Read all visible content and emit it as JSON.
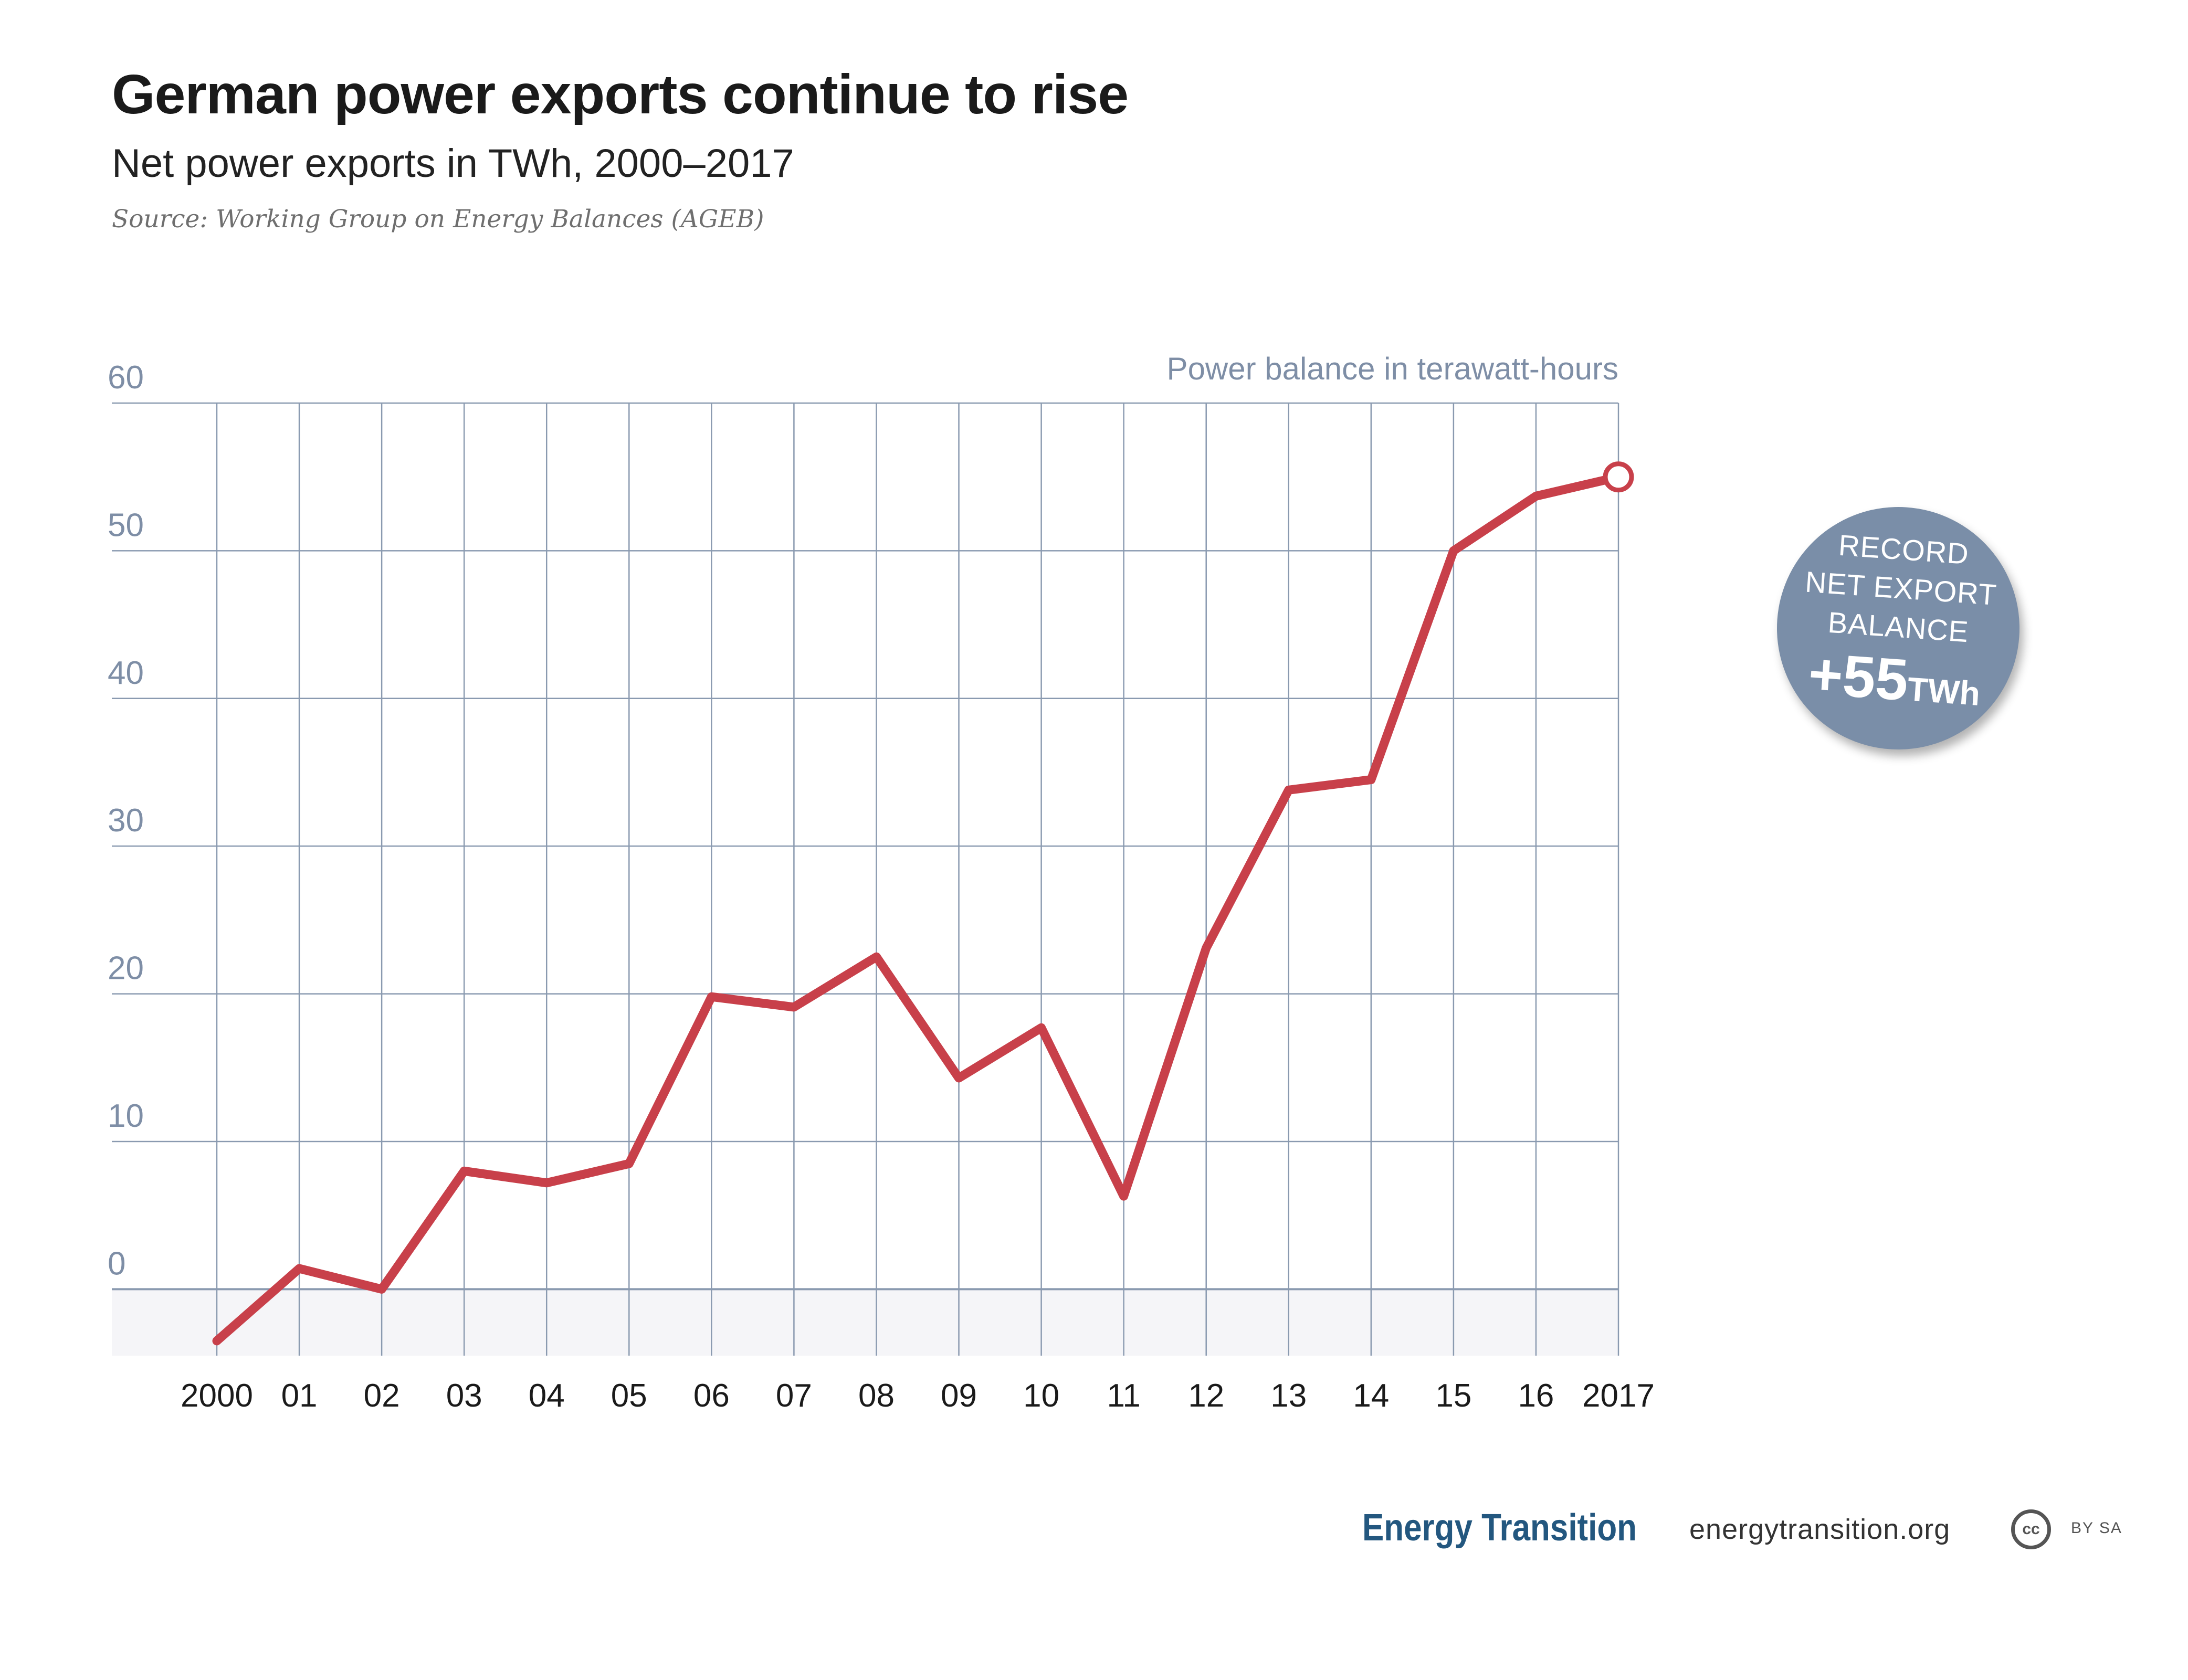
{
  "header": {
    "title": "German power exports continue to rise",
    "subtitle": "Net power exports in TWh, 2000–2017",
    "source": "Source: Working Group on Energy Balances (AGEB)"
  },
  "chart_data": {
    "type": "line",
    "title": "German power exports continue to rise",
    "subtitle": "Net power exports in TWh, 2000–2017",
    "ylabel": "Power balance in terawatt-hours",
    "x_tick_labels": [
      "2000",
      "01",
      "02",
      "03",
      "04",
      "05",
      "06",
      "07",
      "08",
      "09",
      "10",
      "11",
      "12",
      "13",
      "14",
      "15",
      "16",
      "2017"
    ],
    "y_ticks": [
      0,
      10,
      20,
      30,
      40,
      50,
      60
    ],
    "ylim": [
      -4.5,
      60
    ],
    "xlim": [
      2000,
      2017
    ],
    "grid": true,
    "series": [
      {
        "x": [
          2000,
          2001,
          2002,
          2003,
          2004,
          2005,
          2006,
          2007,
          2008,
          2009,
          2010,
          2011,
          2012,
          2013,
          2014,
          2015,
          2016,
          2017
        ],
        "values": [
          -3.5,
          1.4,
          0.0,
          8.0,
          7.2,
          8.5,
          19.8,
          19.1,
          22.5,
          14.3,
          17.7,
          6.3,
          23.1,
          33.8,
          34.5,
          50.0,
          53.7,
          55.0
        ]
      }
    ],
    "annotation": {
      "line1": "RECORD",
      "line2": "NET EXPORT",
      "line3": "BALANCE",
      "value": "+55",
      "unit": "TWh"
    },
    "colors": {
      "line": "#c8404a",
      "grid": "#8a9ab0",
      "axis_label": "#7e8ea6",
      "negative_band": "#f5f5f8",
      "badge": "#7a8ea8"
    }
  },
  "footer": {
    "brand": "Energy Transition",
    "url": "energytransition.org",
    "license_icon": "cc",
    "license_text": "BY SA"
  }
}
